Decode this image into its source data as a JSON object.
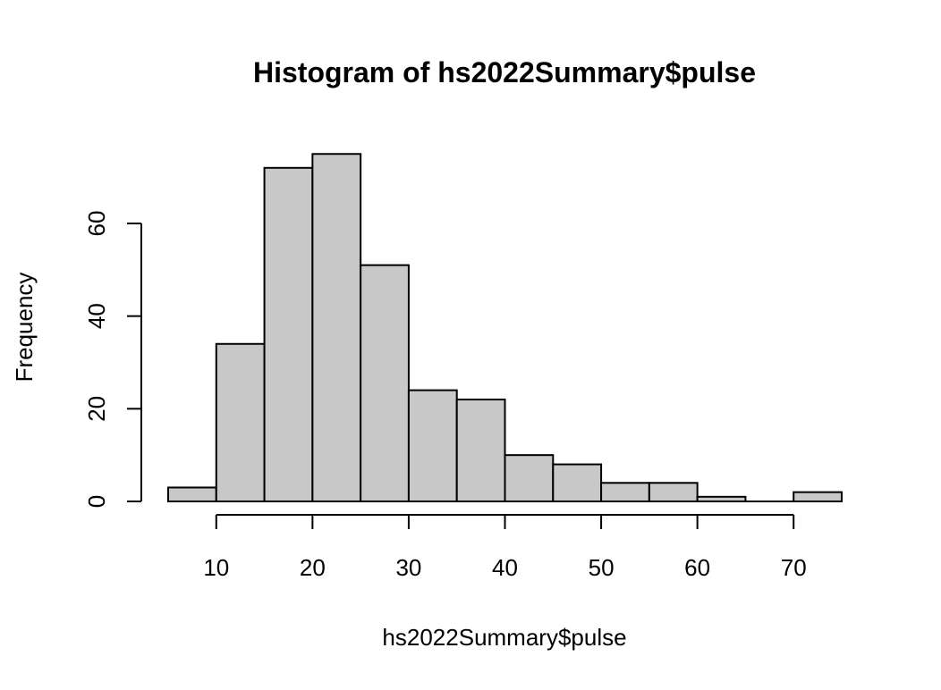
{
  "chart_data": {
    "type": "bar",
    "title": "Histogram of hs2022Summary$pulse",
    "xlabel": "hs2022Summary$pulse",
    "ylabel": "Frequency",
    "bins": [
      {
        "start": 5,
        "end": 10,
        "count": 3
      },
      {
        "start": 10,
        "end": 15,
        "count": 34
      },
      {
        "start": 15,
        "end": 20,
        "count": 72
      },
      {
        "start": 20,
        "end": 25,
        "count": 75
      },
      {
        "start": 25,
        "end": 30,
        "count": 51
      },
      {
        "start": 30,
        "end": 35,
        "count": 24
      },
      {
        "start": 35,
        "end": 40,
        "count": 22
      },
      {
        "start": 40,
        "end": 45,
        "count": 10
      },
      {
        "start": 45,
        "end": 50,
        "count": 8
      },
      {
        "start": 50,
        "end": 55,
        "count": 4
      },
      {
        "start": 55,
        "end": 60,
        "count": 4
      },
      {
        "start": 60,
        "end": 65,
        "count": 1
      },
      {
        "start": 65,
        "end": 70,
        "count": 0
      },
      {
        "start": 70,
        "end": 75,
        "count": 2
      }
    ],
    "xlim": [
      5,
      75
    ],
    "ylim": [
      0,
      75
    ],
    "x_ticks": [
      10,
      20,
      30,
      40,
      50,
      60,
      70
    ],
    "y_ticks": [
      0,
      20,
      40,
      60
    ],
    "bar_fill": "#c8c8c8",
    "bar_stroke": "#000000",
    "grid": false,
    "legend": "none"
  }
}
